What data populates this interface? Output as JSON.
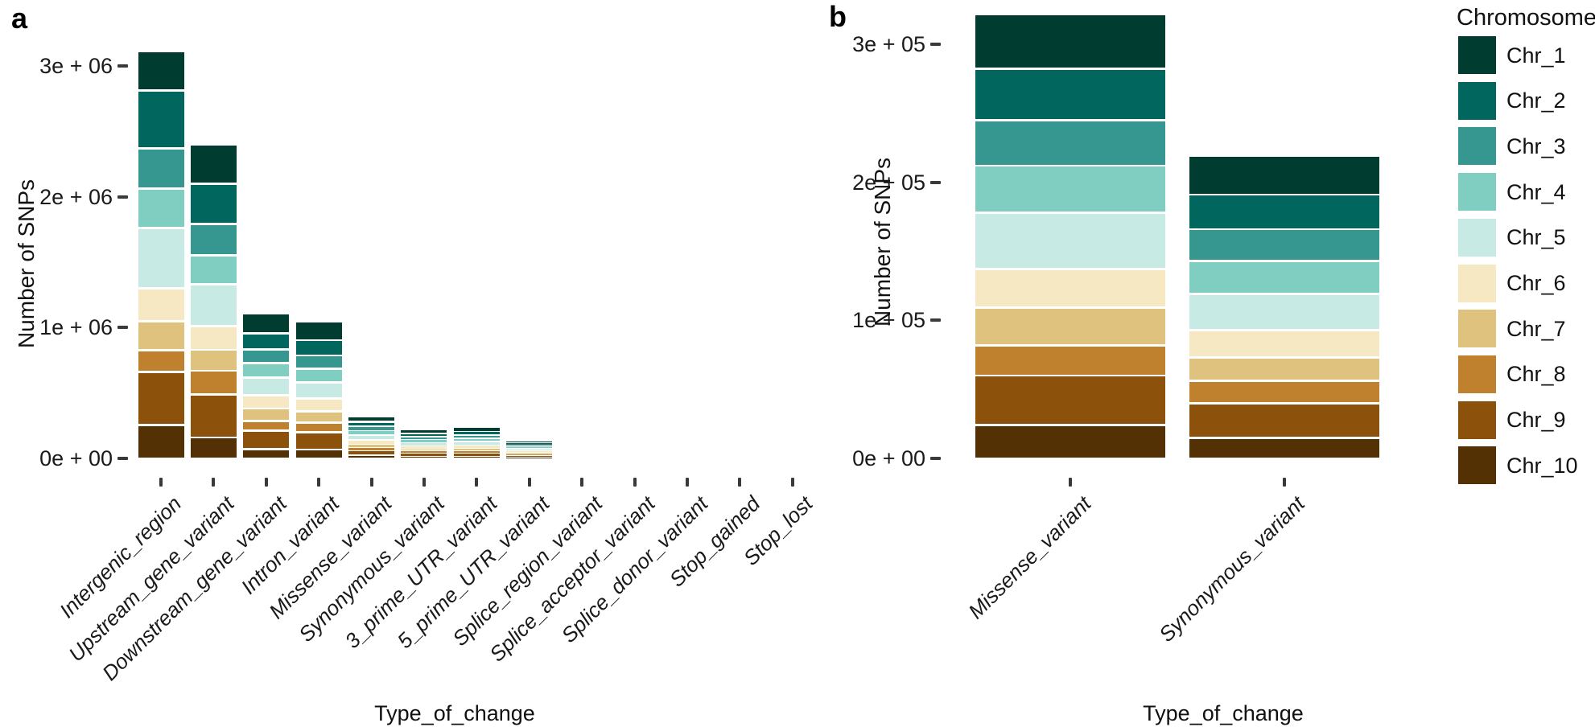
{
  "figure": {
    "panel_a": {
      "label": "a",
      "y_axis_title": "Number of SNPs",
      "x_axis_title": "Type_of_change",
      "y_tick_labels": [
        "3e + 06",
        "2e + 06",
        "1e + 06",
        "0e + 00"
      ]
    },
    "panel_b": {
      "label": "b",
      "y_axis_title": "Number of SNPs",
      "x_axis_title": "Type_of_change",
      "y_tick_labels": [
        "3e + 05",
        "2e + 05",
        "1e + 05",
        "0e + 00"
      ]
    },
    "legend": {
      "title": "Chromosome",
      "entries": [
        {
          "label": "Chr_1",
          "color": "#003c30"
        },
        {
          "label": "Chr_2",
          "color": "#01665e"
        },
        {
          "label": "Chr_3",
          "color": "#35978f"
        },
        {
          "label": "Chr_4",
          "color": "#80cdc1"
        },
        {
          "label": "Chr_5",
          "color": "#c7eae5"
        },
        {
          "label": "Chr_6",
          "color": "#f6e8c3"
        },
        {
          "label": "Chr_7",
          "color": "#dfc27d"
        },
        {
          "label": "Chr_8",
          "color": "#bf812d"
        },
        {
          "label": "Chr_9",
          "color": "#8c510a"
        },
        {
          "label": "Chr_10",
          "color": "#543005"
        }
      ]
    }
  },
  "chart_data": [
    {
      "panel": "a",
      "type": "bar",
      "stacked": true,
      "title": "",
      "xlabel": "Type_of_change",
      "ylabel": "Number of SNPs",
      "ylim": [
        0,
        3200000
      ],
      "y_tick_values": [
        3000000,
        2000000,
        1000000,
        0
      ],
      "grid": false,
      "legend_position": "right",
      "categories": [
        "Intergenic_region",
        "Upstream_gene_variant",
        "Downstream_gene_variant",
        "Intron_variant",
        "Missense_variant",
        "Synonymous_variant",
        "3_prime_UTR_variant",
        "5_prime_UTR_variant",
        "Splice_region_variant",
        "Splice_acceptor_variant",
        "Splice_donor_variant",
        "Stop_gained",
        "Stop_lost"
      ],
      "series": [
        {
          "name": "Chr_1",
          "values": [
            300000,
            300000,
            154000,
            146000,
            39500,
            28000,
            30000,
            17000,
            300,
            80,
            70,
            150,
            40
          ]
        },
        {
          "name": "Chr_2",
          "values": [
            440000,
            310000,
            123000,
            117000,
            37000,
            25000,
            27000,
            16000,
            300,
            80,
            70,
            150,
            40
          ]
        },
        {
          "name": "Chr_3",
          "values": [
            310000,
            240000,
            107000,
            101000,
            33000,
            23000,
            24000,
            14000,
            300,
            80,
            70,
            150,
            40
          ]
        },
        {
          "name": "Chr_4",
          "values": [
            300000,
            220000,
            109000,
            103000,
            34000,
            24000,
            25000,
            14000,
            300,
            80,
            70,
            150,
            40
          ]
        },
        {
          "name": "Chr_5",
          "values": [
            460000,
            320000,
            134000,
            127000,
            41000,
            26000,
            30000,
            16000,
            300,
            80,
            70,
            150,
            40
          ]
        },
        {
          "name": "Chr_6",
          "values": [
            250000,
            180000,
            102000,
            96000,
            28000,
            20000,
            21000,
            12000,
            300,
            80,
            70,
            150,
            40
          ]
        },
        {
          "name": "Chr_7",
          "values": [
            225000,
            160000,
            93000,
            88000,
            27000,
            17000,
            19000,
            11000,
            300,
            80,
            70,
            150,
            40
          ]
        },
        {
          "name": "Chr_8",
          "values": [
            165000,
            180000,
            78000,
            74000,
            22000,
            16000,
            17000,
            10000,
            300,
            80,
            70,
            150,
            40
          ]
        },
        {
          "name": "Chr_9",
          "values": [
            405000,
            330000,
            138000,
            130000,
            36000,
            25000,
            26000,
            15000,
            300,
            80,
            70,
            150,
            40
          ]
        },
        {
          "name": "Chr_10",
          "values": [
            255000,
            160000,
            72000,
            68000,
            24000,
            15000,
            16000,
            10000,
            300,
            80,
            70,
            150,
            40
          ]
        }
      ]
    },
    {
      "panel": "b",
      "type": "bar",
      "stacked": true,
      "title": "",
      "xlabel": "Type_of_change",
      "ylabel": "Number of SNPs",
      "ylim": [
        0,
        322000
      ],
      "y_tick_values": [
        300000,
        200000,
        100000,
        0
      ],
      "grid": false,
      "legend_position": "right",
      "categories": [
        "Missense_variant",
        "Synonymous_variant"
      ],
      "series": [
        {
          "name": "Chr_1",
          "values": [
            39500,
            28000
          ]
        },
        {
          "name": "Chr_2",
          "values": [
            37000,
            25000
          ]
        },
        {
          "name": "Chr_3",
          "values": [
            33000,
            23000
          ]
        },
        {
          "name": "Chr_4",
          "values": [
            34000,
            24000
          ]
        },
        {
          "name": "Chr_5",
          "values": [
            41000,
            26000
          ]
        },
        {
          "name": "Chr_6",
          "values": [
            28000,
            20000
          ]
        },
        {
          "name": "Chr_7",
          "values": [
            27000,
            17000
          ]
        },
        {
          "name": "Chr_8",
          "values": [
            22000,
            16000
          ]
        },
        {
          "name": "Chr_9",
          "values": [
            36000,
            25000
          ]
        },
        {
          "name": "Chr_10",
          "values": [
            24000,
            15000
          ]
        }
      ]
    }
  ]
}
